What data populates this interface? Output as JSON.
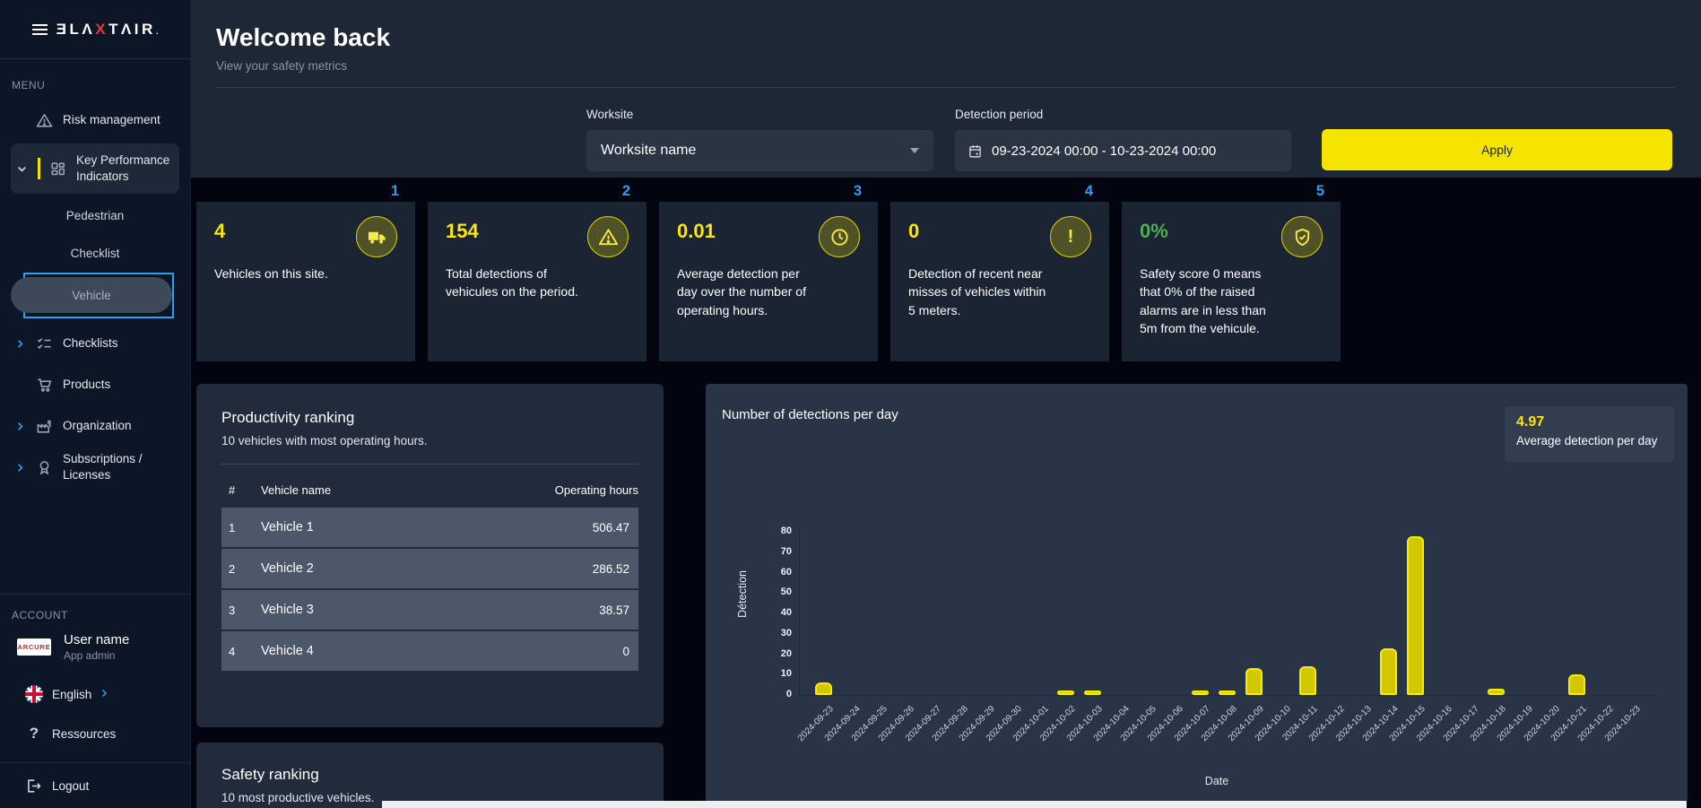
{
  "colors": {
    "accent_yellow": "#f5e400",
    "value_yellow": "#ffe608",
    "index_blue": "#2e9cf5",
    "safety_green": "#4caf50",
    "bar_fill": "#d3c704",
    "bar_border": "#f8ec00"
  },
  "sidebar": {
    "brand": {
      "left": "ƎLΛ",
      "x": "X",
      "right": "TΛIR",
      "suffix": "."
    },
    "menu_label": "MENU",
    "items": [
      {
        "label": "Risk management",
        "icon": "warning-triangle",
        "type": "item"
      },
      {
        "label": "Key Performance Indicators",
        "icon": "grid",
        "type": "item",
        "active": true,
        "accent": true,
        "chevron": "down"
      },
      {
        "label": "Pedestrian",
        "type": "subitem"
      },
      {
        "label": "Checklist",
        "type": "subitem"
      },
      {
        "label": "Vehicle",
        "type": "subitem",
        "selected": true
      },
      {
        "label": "Checklists",
        "icon": "checklist",
        "type": "item",
        "chevron": "right"
      },
      {
        "label": "Products",
        "icon": "cart",
        "type": "item"
      },
      {
        "label": "Organization",
        "icon": "factory",
        "type": "item",
        "chevron": "right"
      },
      {
        "label": "Subscriptions / Licenses",
        "icon": "license",
        "type": "item",
        "chevron": "right"
      }
    ],
    "account_label": "ACCOUNT",
    "user": {
      "avatar_text": "ARCURE",
      "name": "User name",
      "role": "App admin"
    },
    "language_label": "English",
    "resources_label": "Ressources",
    "logout_label": "Logout"
  },
  "header": {
    "title": "Welcome back",
    "subtitle": "View your safety metrics"
  },
  "filters": {
    "worksite_label": "Worksite",
    "worksite_value": "Worksite name",
    "period_label": "Detection period",
    "period_value": "09-23-2024 00:00 - 10-23-2024 00:00",
    "apply_label": "Apply"
  },
  "kpis": [
    {
      "index": "1",
      "value": "4",
      "text": "Vehicles on this site.",
      "icon": "truck"
    },
    {
      "index": "2",
      "value": "154",
      "text": "Total detections of vehicules on the period.",
      "icon": "warning-triangle"
    },
    {
      "index": "3",
      "value": "0.01",
      "text": "Average detection per day over the number of operating hours.",
      "icon": "clock"
    },
    {
      "index": "4",
      "value": "0",
      "text": "Detection of recent near misses of vehicles within 5 meters.",
      "icon": "exclamation"
    },
    {
      "index": "5",
      "value": "0%",
      "value_color": "green",
      "text": "Safety score 0 means that 0% of the raised alarms are in less than 5m from the vehicule.",
      "icon": "shield"
    }
  ],
  "productivity": {
    "title": "Productivity ranking",
    "subtitle": "10 vehicles with most operating hours.",
    "columns": [
      "#",
      "Vehicle name",
      "Operating hours"
    ],
    "rows": [
      [
        "1",
        "Vehicle 1",
        "506.47"
      ],
      [
        "2",
        "Vehicle 2",
        "286.52"
      ],
      [
        "3",
        "Vehicle 3",
        "38.57"
      ],
      [
        "4",
        "Vehicle 4",
        "0"
      ]
    ]
  },
  "safety": {
    "title": "Safety ranking",
    "subtitle": "10 most productive vehicles."
  },
  "chart_data": {
    "type": "bar",
    "title": "Number of detections per day",
    "badge_value": "4.97",
    "badge_label": "Average detection per day",
    "xlabel": "Date",
    "ylabel": "Détection",
    "ylim": [
      0,
      80
    ],
    "yticks": [
      0,
      10,
      20,
      30,
      40,
      50,
      60,
      70,
      80
    ],
    "legend": "none",
    "grid": false,
    "categories": [
      "2024-09-23",
      "2024-09-24",
      "2024-09-25",
      "2024-09-26",
      "2024-09-27",
      "2024-09-28",
      "2024-09-29",
      "2024-09-30",
      "2024-10-01",
      "2024-10-02",
      "2024-10-03",
      "2024-10-04",
      "2024-10-05",
      "2024-10-06",
      "2024-10-07",
      "2024-10-08",
      "2024-10-09",
      "2024-10-10",
      "2024-10-11",
      "2024-10-12",
      "2024-10-13",
      "2024-10-14",
      "2024-10-15",
      "2024-10-16",
      "2024-10-17",
      "2024-10-18",
      "2024-10-19",
      "2024-10-20",
      "2024-10-21",
      "2024-10-22",
      "2024-10-23"
    ],
    "values": [
      6,
      0,
      0,
      0,
      0,
      0,
      0,
      0,
      0,
      2,
      2,
      0,
      0,
      0,
      1,
      2,
      13,
      0,
      14,
      0,
      0,
      23,
      78,
      0,
      0,
      3,
      0,
      0,
      10,
      0,
      0
    ]
  }
}
